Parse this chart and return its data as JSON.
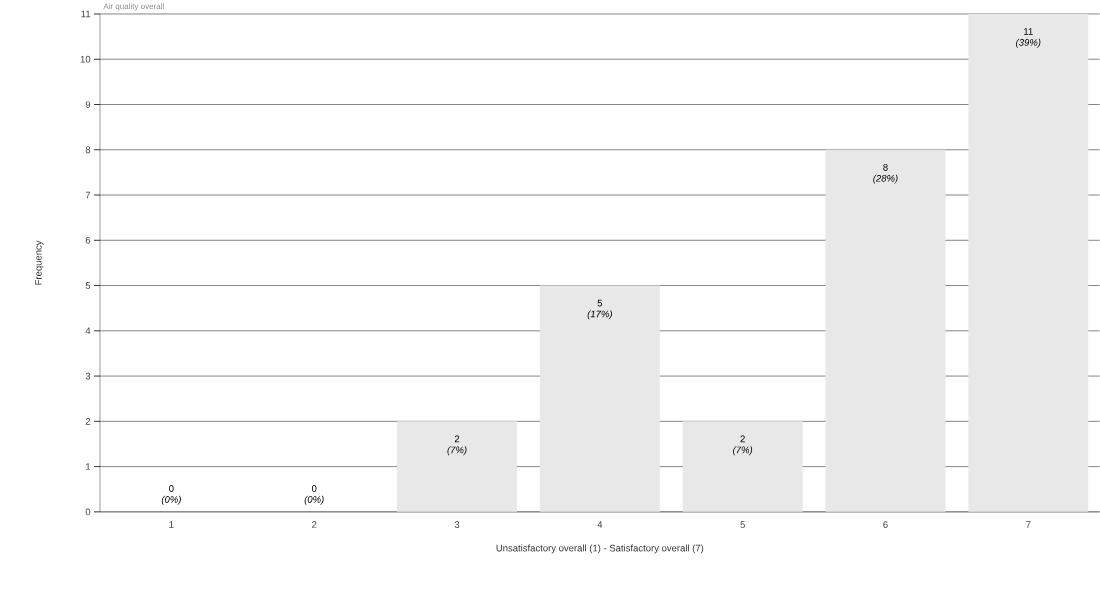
{
  "chart_data": {
    "type": "bar",
    "title": "Air quality overall",
    "xlabel": "Unsatisfactory overall (1) - Satisfactory overall (7)",
    "ylabel": "Frequency",
    "categories": [
      "1",
      "2",
      "3",
      "4",
      "5",
      "6",
      "7"
    ],
    "values": [
      0,
      0,
      2,
      5,
      2,
      8,
      11
    ],
    "color": "#e8e8e8",
    "ylim": [
      0,
      11
    ],
    "yticks": [
      0,
      1,
      2,
      3,
      4,
      5,
      6,
      7,
      8,
      9,
      10,
      11
    ],
    "grid": "y",
    "value_labels": [
      "0 *(0%)*",
      "0 *(0%)*",
      "2 *(7%)*",
      "5 *(17%)*",
      "2 *(7%)*",
      "8 *(28%)*",
      "11 *(39%)*"
    ]
  }
}
